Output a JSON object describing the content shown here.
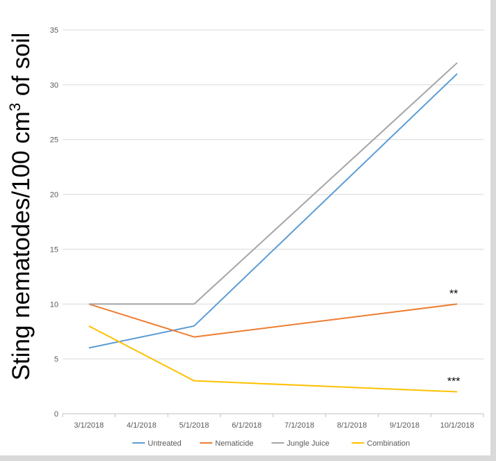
{
  "chart_data": {
    "type": "line",
    "title": "",
    "xlabel": "",
    "ylabel": {
      "main": "Sting nematodes/100 cm",
      "sup": "3",
      "tail": " of soil"
    },
    "ylim": [
      0,
      35
    ],
    "yticks": [
      0,
      5,
      10,
      15,
      20,
      25,
      30,
      35
    ],
    "x_categories": [
      "3/1/2018",
      "4/1/2018",
      "5/1/2018",
      "6/1/2018",
      "7/1/2018",
      "8/1/2018",
      "9/1/2018",
      "10/1/2018"
    ],
    "grid": "horizontal",
    "legend_position": "bottom",
    "series": [
      {
        "name": "Untreated",
        "color": "#5b9bd5",
        "x": [
          "3/1/2018",
          "5/1/2018",
          "10/1/2018"
        ],
        "values": [
          6,
          8,
          31
        ]
      },
      {
        "name": "Nematicide",
        "color": "#ed7d31",
        "x": [
          "3/1/2018",
          "5/1/2018",
          "10/1/2018"
        ],
        "values": [
          10,
          7,
          10
        ]
      },
      {
        "name": "Jungle Juice",
        "color": "#a5a5a5",
        "x": [
          "3/1/2018",
          "5/1/2018",
          "10/1/2018"
        ],
        "values": [
          10,
          10,
          32
        ]
      },
      {
        "name": "Combination",
        "color": "#ffc000",
        "x": [
          "3/1/2018",
          "5/1/2018",
          "10/1/2018"
        ],
        "values": [
          8,
          3,
          2
        ]
      }
    ],
    "annotations": [
      {
        "text": "**",
        "x": "10/1/2018",
        "y": 10
      },
      {
        "text": "***",
        "x": "10/1/2018",
        "y": 2
      }
    ]
  }
}
